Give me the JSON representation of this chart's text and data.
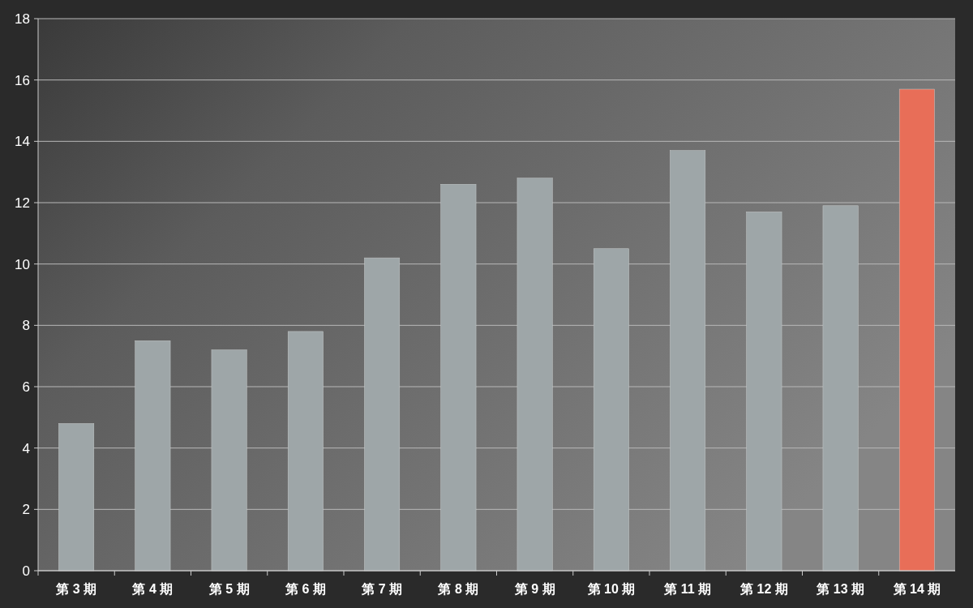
{
  "chart_data": {
    "type": "bar",
    "categories": [
      "第 3 期",
      "第 4 期",
      "第 5 期",
      "第 6 期",
      "第 7 期",
      "第 8 期",
      "第 9 期",
      "第 10 期",
      "第 11 期",
      "第 12 期",
      "第 13 期",
      "第 14 期"
    ],
    "values": [
      4.8,
      7.5,
      7.2,
      7.8,
      10.2,
      12.6,
      12.8,
      10.5,
      13.7,
      11.7,
      11.9,
      15.7
    ],
    "colors": [
      "#9ea6a8",
      "#9ea6a8",
      "#9ea6a8",
      "#9ea6a8",
      "#9ea6a8",
      "#9ea6a8",
      "#9ea6a8",
      "#9ea6a8",
      "#9ea6a8",
      "#9ea6a8",
      "#9ea6a8",
      "#e86e58"
    ],
    "ylim": [
      0,
      18
    ],
    "yticks": [
      0,
      2,
      4,
      6,
      8,
      10,
      12,
      14,
      16,
      18
    ],
    "grid": "y"
  }
}
